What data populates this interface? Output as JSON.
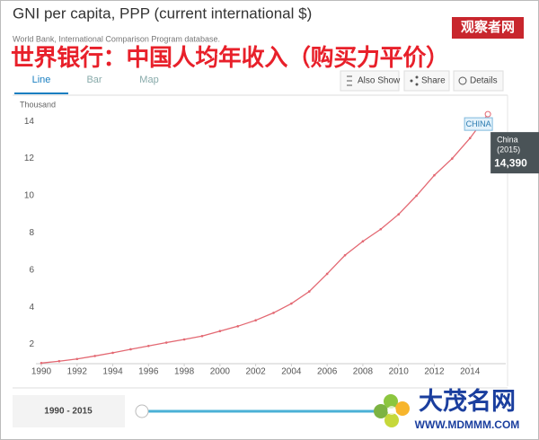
{
  "header": {
    "title": "GNI per capita, PPP (current international $)",
    "source": "World Bank, International Comparison Program database.",
    "overlay": "世界银行：中国人均年收入（购买力平价）",
    "badge": "观察者网"
  },
  "tabs": [
    "Line",
    "Bar",
    "Map"
  ],
  "buttons": [
    "Also Show",
    "Share",
    "Details"
  ],
  "range": "1990 - 2015",
  "watermark": {
    "name": "大茂名网",
    "url": "WWW.MDMMM.COM"
  },
  "chart_data": {
    "type": "line",
    "y_label": "Thousand",
    "x": [
      1990,
      1991,
      1992,
      1993,
      1994,
      1995,
      1996,
      1997,
      1998,
      1999,
      2000,
      2001,
      2002,
      2003,
      2004,
      2005,
      2006,
      2007,
      2008,
      2009,
      2010,
      2011,
      2012,
      2013,
      2014,
      2015
    ],
    "series": [
      {
        "name": "CHINA",
        "color": "#e36872",
        "values": [
          1.0,
          1.1,
          1.22,
          1.38,
          1.55,
          1.74,
          1.92,
          2.1,
          2.27,
          2.45,
          2.72,
          2.98,
          3.3,
          3.7,
          4.2,
          4.85,
          5.8,
          6.8,
          7.55,
          8.2,
          9.0,
          10.0,
          11.1,
          12.0,
          13.1,
          14.39
        ]
      }
    ],
    "xlim": [
      1990,
      2016
    ],
    "ylim": [
      1,
      15
    ],
    "xticks": [
      1990,
      1992,
      1994,
      1996,
      1998,
      2000,
      2002,
      2004,
      2006,
      2008,
      2010,
      2012,
      2014
    ],
    "yticks": [
      2,
      4,
      6,
      8,
      10,
      12,
      14
    ],
    "grid": false,
    "tooltip": {
      "name": "China",
      "period": "(2015)",
      "value_label": "14,390"
    }
  }
}
